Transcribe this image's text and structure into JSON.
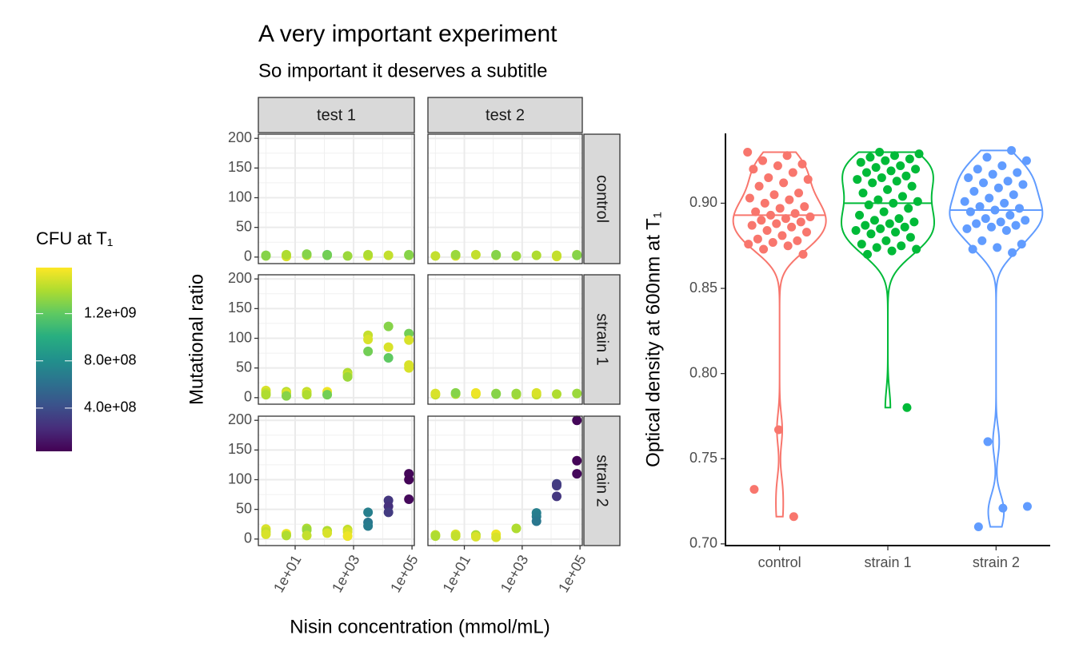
{
  "chart_data": [
    {
      "type": "scatter",
      "title": "A very important experiment",
      "subtitle": "So important it deserves a subtitle",
      "xlabel": "Nisin concentration (mmol/mL)",
      "ylabel": "Mutational ratio",
      "facet_cols": [
        "test 1",
        "test 2"
      ],
      "facet_rows": [
        "control",
        "strain 1",
        "strain 2"
      ],
      "xlog": true,
      "xlim": [
        0.55,
        120000
      ],
      "xticks": [
        {
          "value": 10,
          "label": "1e+01"
        },
        {
          "value": 1000,
          "label": "1e+03"
        },
        {
          "value": 100000,
          "label": "1e+05"
        }
      ],
      "ylim": [
        -11,
        207
      ],
      "yticks": [
        0,
        50,
        100,
        150,
        200
      ],
      "grid": true,
      "colormap": "viridis",
      "colorbar": {
        "title": "CFU at T₁",
        "clim": [
          34000000,
          1590000000
        ],
        "ticks": [
          {
            "value": 400000000,
            "label": "4.0e+08"
          },
          {
            "value": 800000000,
            "label": "8.0e+08"
          },
          {
            "value": 1200000000,
            "label": "1.2e+09"
          }
        ]
      },
      "panels": [
        [
          {
            "x": [
              1,
              1,
              5,
              5,
              25,
              25,
              125,
              125,
              625,
              3125,
              3125,
              15625,
              78125,
              78125
            ],
            "y": [
              2,
              3,
              1,
              4,
              3,
              5,
              4,
              3,
              2,
              2,
              4,
              3,
              3,
              4
            ],
            "cfu": [
              1350000000,
              1300000000,
              1500000000,
              1400000000,
              1450000000,
              1300000000,
              1200000000,
              1250000000,
              1350000000,
              1500000000,
              1400000000,
              1450000000,
              1350000000,
              1300000000
            ]
          },
          {
            "x": [
              1,
              5,
              5,
              25,
              125,
              125,
              625,
              3125,
              15625,
              15625,
              78125,
              78125
            ],
            "y": [
              2,
              2,
              4,
              4,
              3,
              4,
              2,
              3,
              1,
              3,
              4,
              3
            ],
            "cfu": [
              1450000000,
              1500000000,
              1350000000,
              1450000000,
              1400000000,
              1300000000,
              1350000000,
              1400000000,
              1500000000,
              1450000000,
              1350000000,
              1300000000
            ]
          }
        ],
        [
          {
            "x": [
              1,
              1,
              1,
              5,
              5,
              5,
              25,
              25,
              25,
              125,
              125,
              625,
              625,
              625,
              3125,
              3125,
              3125,
              15625,
              15625,
              15625,
              78125,
              78125,
              78125,
              78125
            ],
            "y": [
              12,
              8,
              5,
              10,
              8,
              3,
              10,
              7,
              5,
              10,
              5,
              42,
              38,
              35,
              105,
              98,
              78,
              120,
              85,
              67,
              108,
              97,
              55,
              50
            ],
            "cfu": [
              1500000000,
              1450000000,
              1400000000,
              1400000000,
              1500000000,
              1300000000,
              1450000000,
              1500000000,
              1400000000,
              1550000000,
              1250000000,
              1400000000,
              1450000000,
              1350000000,
              1450000000,
              1500000000,
              1250000000,
              1300000000,
              1500000000,
              1200000000,
              1250000000,
              1500000000,
              1500000000,
              1500000000
            ]
          },
          {
            "x": [
              1,
              1,
              5,
              5,
              25,
              25,
              125,
              125,
              625,
              625,
              3125,
              3125,
              15625,
              78125
            ],
            "y": [
              5,
              7,
              6,
              8,
              6,
              8,
              7,
              6,
              5,
              7,
              5,
              8,
              6,
              7
            ],
            "cfu": [
              1450000000,
              1500000000,
              1400000000,
              1300000000,
              1500000000,
              1550000000,
              1350000000,
              1300000000,
              1400000000,
              1350000000,
              1450000000,
              1500000000,
              1400000000,
              1350000000
            ]
          }
        ],
        [
          {
            "x": [
              1,
              1,
              1,
              5,
              5,
              25,
              25,
              25,
              125,
              125,
              625,
              625,
              625,
              3125,
              3125,
              3125,
              15625,
              15625,
              15625,
              78125,
              78125,
              78125
            ],
            "y": [
              17,
              12,
              8,
              9,
              6,
              18,
              15,
              6,
              14,
              10,
              16,
              12,
              5,
              45,
              28,
              22,
              65,
              55,
              45,
              110,
              100,
              67
            ],
            "cfu": [
              1500000000,
              1450000000,
              1500000000,
              1550000000,
              1400000000,
              1400000000,
              1350000000,
              1450000000,
              1400000000,
              1500000000,
              1450000000,
              1500000000,
              1550000000,
              700000000,
              650000000,
              680000000,
              280000000,
              250000000,
              300000000,
              60000000,
              50000000,
              70000000
            ]
          },
          {
            "x": [
              1,
              1,
              5,
              5,
              25,
              25,
              125,
              125,
              625,
              3125,
              3125,
              3125,
              15625,
              15625,
              15625,
              78125,
              78125,
              78125
            ],
            "y": [
              7,
              5,
              8,
              5,
              7,
              4,
              8,
              3,
              18,
              44,
              38,
              30,
              93,
              90,
              72,
              200,
              132,
              110
            ],
            "cfu": [
              1450000000,
              1400000000,
              1500000000,
              1450000000,
              1400000000,
              1500000000,
              1550000000,
              1500000000,
              1400000000,
              700000000,
              680000000,
              650000000,
              320000000,
              300000000,
              280000000,
              60000000,
              50000000,
              70000000
            ]
          }
        ]
      ]
    },
    {
      "type": "violin",
      "ylabel": "Optical density at 600nm at T₁",
      "categories": [
        "control",
        "strain 1",
        "strain 2"
      ],
      "ylim": [
        0.699,
        0.941
      ],
      "yticks": [
        {
          "value": 0.7,
          "label": "0.70"
        },
        {
          "value": 0.75,
          "label": "0.75"
        },
        {
          "value": 0.8,
          "label": "0.80"
        },
        {
          "value": 0.85,
          "label": "0.85"
        },
        {
          "value": 0.9,
          "label": "0.90"
        }
      ],
      "jitter": true,
      "series": [
        {
          "color": "#F8766D",
          "values": [
            0.93,
            0.928,
            0.925,
            0.923,
            0.922,
            0.92,
            0.918,
            0.915,
            0.914,
            0.912,
            0.91,
            0.906,
            0.905,
            0.903,
            0.902,
            0.9,
            0.898,
            0.897,
            0.895,
            0.894,
            0.893,
            0.892,
            0.891,
            0.89,
            0.889,
            0.888,
            0.887,
            0.886,
            0.884,
            0.883,
            0.881,
            0.879,
            0.878,
            0.877,
            0.876,
            0.875,
            0.873,
            0.87,
            0.767,
            0.732,
            0.716
          ]
        },
        {
          "color": "#00BA38",
          "values": [
            0.93,
            0.929,
            0.928,
            0.927,
            0.926,
            0.925,
            0.924,
            0.922,
            0.921,
            0.92,
            0.919,
            0.918,
            0.916,
            0.915,
            0.914,
            0.913,
            0.912,
            0.91,
            0.908,
            0.906,
            0.904,
            0.902,
            0.901,
            0.9,
            0.899,
            0.897,
            0.895,
            0.893,
            0.891,
            0.89,
            0.889,
            0.888,
            0.887,
            0.886,
            0.885,
            0.884,
            0.883,
            0.882,
            0.88,
            0.878,
            0.876,
            0.875,
            0.874,
            0.873,
            0.872,
            0.87,
            0.78
          ]
        },
        {
          "color": "#619CFF",
          "values": [
            0.931,
            0.927,
            0.925,
            0.922,
            0.92,
            0.918,
            0.917,
            0.915,
            0.913,
            0.912,
            0.911,
            0.909,
            0.907,
            0.905,
            0.903,
            0.901,
            0.9,
            0.898,
            0.897,
            0.896,
            0.895,
            0.893,
            0.891,
            0.89,
            0.889,
            0.888,
            0.887,
            0.886,
            0.885,
            0.884,
            0.878,
            0.876,
            0.874,
            0.873,
            0.871,
            0.76,
            0.722,
            0.721,
            0.71
          ]
        }
      ]
    }
  ]
}
